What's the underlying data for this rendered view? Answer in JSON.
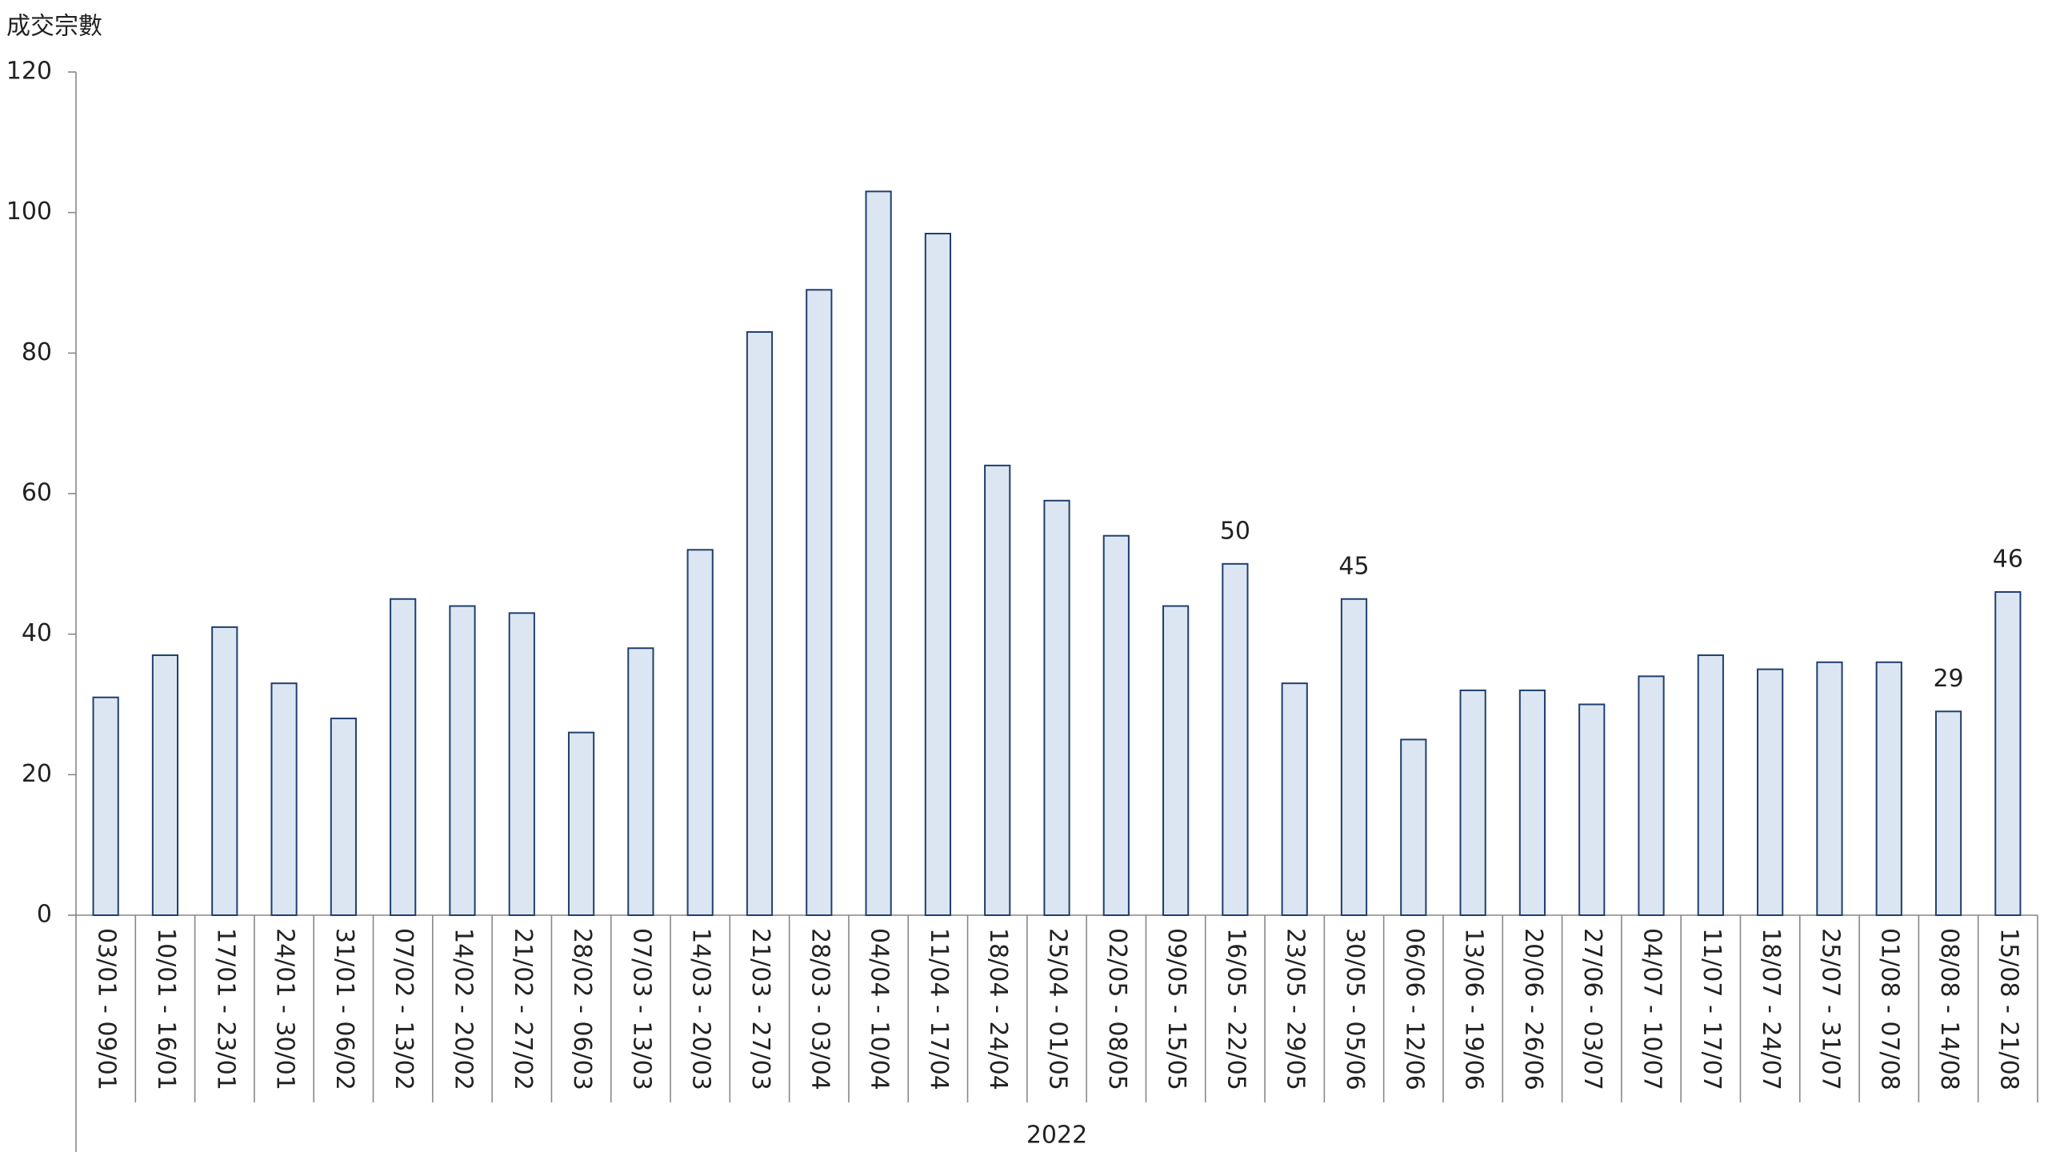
{
  "chart_data": {
    "type": "bar",
    "y_label": "成交宗數",
    "group_label": "2022",
    "categories": [
      "03/01 - 09/01",
      "10/01 - 16/01",
      "17/01 - 23/01",
      "24/01 - 30/01",
      "31/01 - 06/02",
      "07/02 - 13/02",
      "14/02 - 20/02",
      "21/02 - 27/02",
      "28/02 - 06/03",
      "07/03 - 13/03",
      "14/03 - 20/03",
      "21/03 - 27/03",
      "28/03 - 03/04",
      "04/04 - 10/04",
      "11/04 - 17/04",
      "18/04 - 24/04",
      "25/04 - 01/05",
      "02/05 - 08/05",
      "09/05 - 15/05",
      "16/05 - 22/05",
      "23/05 - 29/05",
      "30/05 - 05/06",
      "06/06 - 12/06",
      "13/06 - 19/06",
      "20/06 - 26/06",
      "27/06 - 03/07",
      "04/07 - 10/07",
      "11/07 - 17/07",
      "18/07 - 24/07",
      "25/07 - 31/07",
      "01/08 - 07/08",
      "08/08 - 14/08",
      "15/08 - 21/08"
    ],
    "values": [
      31,
      37,
      41,
      33,
      28,
      45,
      44,
      43,
      26,
      38,
      52,
      83,
      89,
      103,
      97,
      64,
      59,
      54,
      44,
      50,
      33,
      45,
      25,
      32,
      32,
      30,
      34,
      37,
      35,
      36,
      36,
      29,
      46
    ],
    "value_labels": [
      null,
      null,
      null,
      null,
      null,
      null,
      null,
      null,
      null,
      null,
      null,
      null,
      null,
      null,
      null,
      null,
      null,
      null,
      null,
      "50",
      null,
      "45",
      null,
      null,
      null,
      null,
      null,
      null,
      null,
      null,
      null,
      "29",
      "46"
    ],
    "color": "#dce6f2",
    "edge_color": "#1f3f6e",
    "ylim": [
      0,
      120
    ],
    "yticks": [
      0,
      20,
      40,
      60,
      80,
      100,
      120
    ],
    "grid": false
  }
}
